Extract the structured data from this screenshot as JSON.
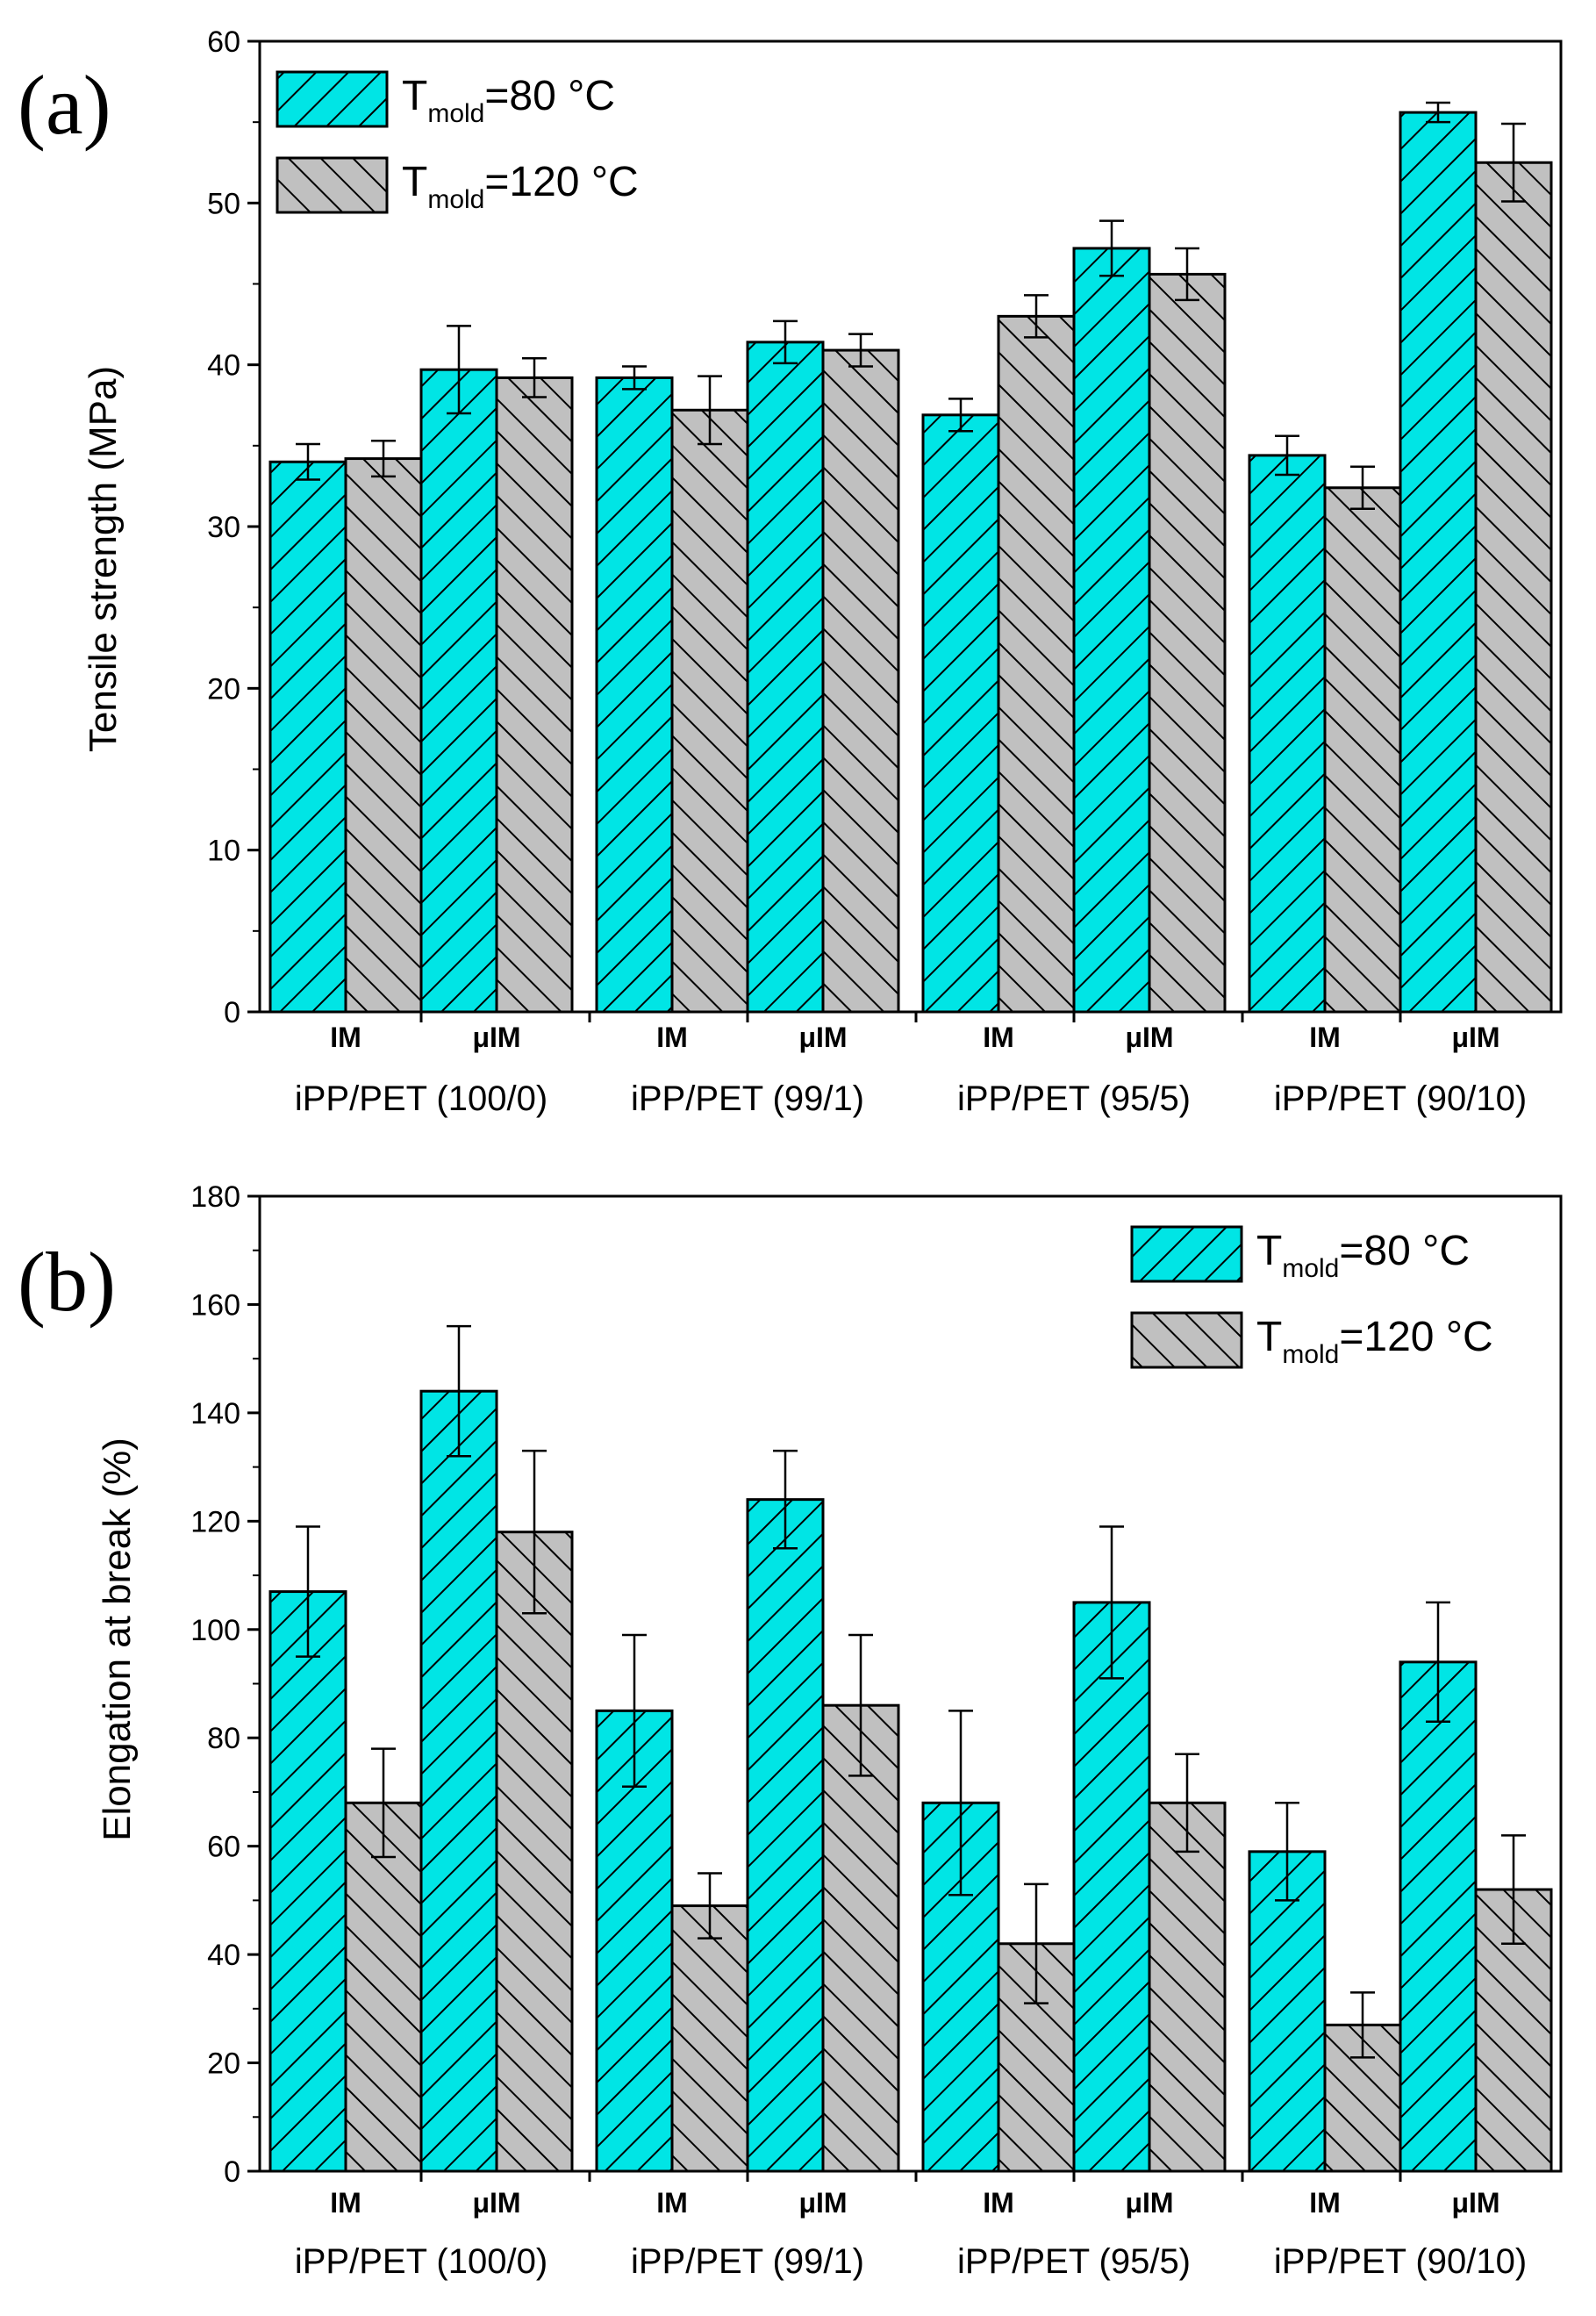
{
  "colors": {
    "cyan": "#00e5e5",
    "gray": "#c0c0c0",
    "stroke": "#000000"
  },
  "chart_data": [
    {
      "type": "bar",
      "panel_label": "(a)",
      "ylabel": "Tensile strength (MPa)",
      "ylim": [
        0,
        60
      ],
      "yticks": [
        "0",
        "10",
        "20",
        "30",
        "40",
        "50",
        "60"
      ],
      "groups": [
        "iPP/PET (100/0)",
        "iPP/PET (99/1)",
        "iPP/PET (95/5)",
        "iPP/PET (90/10)"
      ],
      "methods": [
        "IM",
        "μIM"
      ],
      "legend_position": "top-left",
      "series": [
        {
          "name": "T_mold=80 °C",
          "legend_base": "T",
          "legend_sub": "mold",
          "legend_rest": "=80 °C",
          "color": "#00e5e5",
          "values": [
            [
              34.0,
              39.7
            ],
            [
              39.2,
              41.4
            ],
            [
              36.9,
              47.2
            ],
            [
              34.4,
              55.6
            ]
          ],
          "errors": [
            [
              1.1,
              2.7
            ],
            [
              0.7,
              1.3
            ],
            [
              1.0,
              1.7
            ],
            [
              1.2,
              0.6
            ]
          ]
        },
        {
          "name": "T_mold=120 °C",
          "legend_base": "T",
          "legend_sub": "mold",
          "legend_rest": "=120 °C",
          "color": "#c0c0c0",
          "values": [
            [
              34.2,
              39.2
            ],
            [
              37.2,
              40.9
            ],
            [
              43.0,
              45.6
            ],
            [
              32.4,
              52.5
            ]
          ],
          "errors": [
            [
              1.1,
              1.2
            ],
            [
              2.1,
              1.0
            ],
            [
              1.3,
              1.6
            ],
            [
              1.3,
              2.4
            ]
          ]
        }
      ]
    },
    {
      "type": "bar",
      "panel_label": "(b)",
      "ylabel": "Elongation at break (%)",
      "ylim": [
        0,
        180
      ],
      "yticks": [
        "0",
        "20",
        "40",
        "60",
        "80",
        "100",
        "120",
        "140",
        "160",
        "180"
      ],
      "groups": [
        "iPP/PET (100/0)",
        "iPP/PET (99/1)",
        "iPP/PET (95/5)",
        "iPP/PET (90/10)"
      ],
      "methods": [
        "IM",
        "μIM"
      ],
      "legend_position": "top-right",
      "series": [
        {
          "name": "T_mold=80 °C",
          "legend_base": "T",
          "legend_sub": "mold",
          "legend_rest": "=80 °C",
          "color": "#00e5e5",
          "values": [
            [
              107,
              144
            ],
            [
              85,
              124
            ],
            [
              68,
              105
            ],
            [
              59,
              94
            ]
          ],
          "errors": [
            [
              12,
              12
            ],
            [
              14,
              9
            ],
            [
              17,
              14
            ],
            [
              9,
              11
            ]
          ]
        },
        {
          "name": "T_mold=120 °C",
          "legend_base": "T",
          "legend_sub": "mold",
          "legend_rest": "=120 °C",
          "color": "#c0c0c0",
          "values": [
            [
              68,
              118
            ],
            [
              49,
              86
            ],
            [
              42,
              68
            ],
            [
              27,
              52
            ]
          ],
          "errors": [
            [
              10,
              15
            ],
            [
              6,
              13
            ],
            [
              11,
              9
            ],
            [
              6,
              10
            ]
          ]
        }
      ]
    }
  ]
}
